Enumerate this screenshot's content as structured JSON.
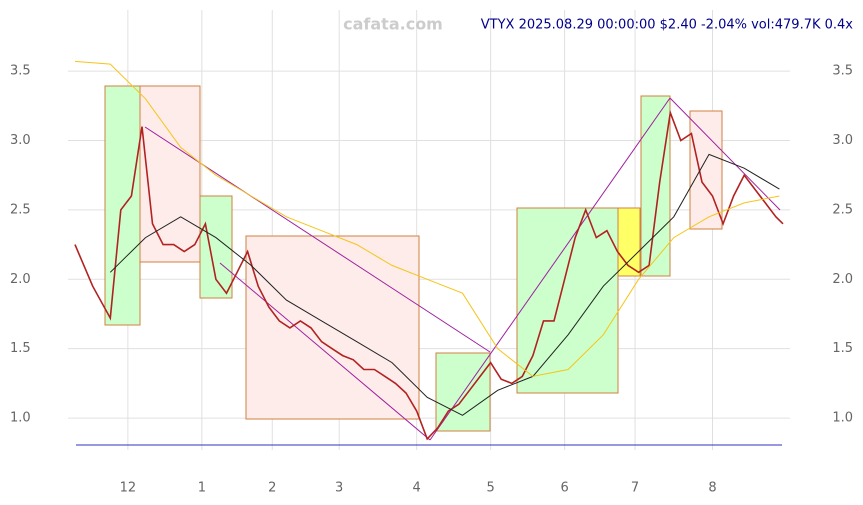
{
  "chart_data": {
    "type": "line",
    "title": "VTYX 2025.08.29 00:00:00 $2.40 -2.04% vol:479.7K 0.4x",
    "watermark": "cafata.com",
    "xlim": [
      -2,
      203
    ],
    "ylim": [
      0.77,
      3.94
    ],
    "xticks": [
      {
        "value": 15,
        "label": "12"
      },
      {
        "value": 36,
        "label": "1"
      },
      {
        "value": 56,
        "label": "2"
      },
      {
        "value": 75,
        "label": "3"
      },
      {
        "value": 97,
        "label": "4"
      },
      {
        "value": 118,
        "label": "5"
      },
      {
        "value": 139,
        "label": "6"
      },
      {
        "value": 159,
        "label": "7"
      },
      {
        "value": 181,
        "label": "8"
      }
    ],
    "yticks": [
      {
        "value": 1,
        "label": "1.0"
      },
      1.5,
      {
        "value": 2,
        "label": "2.0"
      },
      2.5,
      {
        "value": 3,
        "label": "3.0"
      },
      3.5
    ],
    "grid": true,
    "series": [
      {
        "color": "#b22222",
        "x": [
          0,
          5,
          10,
          13,
          16,
          19,
          22,
          25,
          28,
          31,
          34,
          37,
          40,
          43,
          46,
          49,
          52,
          55,
          58,
          61,
          64,
          67,
          70,
          73,
          76,
          79,
          82,
          85,
          88,
          91,
          94,
          97,
          100,
          103,
          106,
          109,
          112,
          115,
          118,
          121,
          124,
          127,
          130,
          133,
          136,
          139,
          142,
          145,
          148,
          151,
          154,
          157,
          160,
          163,
          166,
          169,
          172,
          175,
          178,
          181,
          184,
          187,
          190,
          193,
          196,
          199,
          201
        ],
        "values": [
          2.25,
          1.95,
          1.72,
          2.5,
          2.6,
          3.1,
          2.4,
          2.25,
          2.25,
          2.2,
          2.25,
          2.4,
          2.0,
          1.9,
          2.05,
          2.2,
          1.95,
          1.8,
          1.7,
          1.65,
          1.7,
          1.65,
          1.55,
          1.5,
          1.45,
          1.42,
          1.35,
          1.35,
          1.3,
          1.25,
          1.18,
          1.05,
          0.85,
          0.93,
          1.05,
          1.1,
          1.2,
          1.3,
          1.4,
          1.28,
          1.25,
          1.3,
          1.45,
          1.7,
          1.7,
          2.0,
          2.3,
          2.5,
          2.3,
          2.35,
          2.2,
          2.1,
          2.05,
          2.1,
          2.7,
          3.2,
          3.0,
          3.05,
          2.7,
          2.6,
          2.4,
          2.6,
          2.75,
          2.65,
          2.55,
          2.45,
          2.4
        ]
      },
      {
        "color": "#222222",
        "x": [
          10,
          20,
          30,
          40,
          50,
          60,
          70,
          80,
          90,
          100,
          110,
          120,
          130,
          140,
          150,
          160,
          170,
          180,
          190,
          200
        ],
        "values": [
          2.05,
          2.3,
          2.45,
          2.3,
          2.1,
          1.85,
          1.7,
          1.55,
          1.4,
          1.15,
          1.02,
          1.2,
          1.3,
          1.6,
          1.95,
          2.2,
          2.45,
          2.9,
          2.8,
          2.65
        ]
      },
      {
        "color": "#f5c518",
        "x": [
          0,
          10,
          20,
          30,
          40,
          50,
          60,
          70,
          80,
          90,
          100,
          110,
          120,
          130,
          140,
          150,
          160,
          170,
          180,
          190,
          200
        ],
        "values": [
          3.57,
          3.55,
          3.3,
          2.95,
          2.75,
          2.6,
          2.45,
          2.35,
          2.25,
          2.1,
          2.0,
          1.9,
          1.5,
          1.3,
          1.35,
          1.6,
          2.0,
          2.3,
          2.45,
          2.55,
          2.6
        ]
      }
    ]
  }
}
